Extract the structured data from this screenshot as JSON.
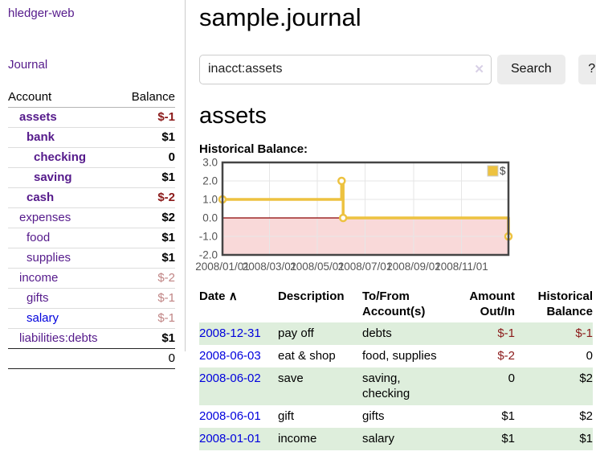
{
  "app": {
    "brand": "hledger-web"
  },
  "nav": {
    "journal": "Journal"
  },
  "sidebar": {
    "header": {
      "account": "Account",
      "balance": "Balance"
    },
    "accounts": [
      {
        "name": "assets",
        "level": 1,
        "balance": "$-1"
      },
      {
        "name": "bank",
        "level": 2,
        "balance": "$1"
      },
      {
        "name": "checking",
        "level": 3,
        "balance": "0"
      },
      {
        "name": "saving",
        "level": 3,
        "balance": "$1"
      },
      {
        "name": "cash",
        "level": 2,
        "balance": "$-2"
      },
      {
        "name": "expenses",
        "level": 1,
        "balance": "$2"
      },
      {
        "name": "food",
        "level": 2,
        "balance": "$1"
      },
      {
        "name": "supplies",
        "level": 2,
        "balance": "$1"
      },
      {
        "name": "income",
        "level": 1,
        "balance": "$-2"
      },
      {
        "name": "gifts",
        "level": 2,
        "balance": "$-1"
      },
      {
        "name": "salary",
        "level": 2,
        "balance": "$-1"
      },
      {
        "name": "liabilities:debts",
        "level": 1,
        "balance": "$1"
      }
    ],
    "total": "0"
  },
  "page": {
    "title": "sample.journal",
    "account_heading": "assets",
    "chart_title": "Historical Balance:"
  },
  "search": {
    "query": "inacct:assets",
    "clear_icon": "✕",
    "search_button": "Search",
    "help_button": "?"
  },
  "colors": {
    "link_purple": "#551a8b",
    "link_blue": "#0000dd",
    "negative_strong": "#8b1a1a",
    "negative_soft": "#c08484",
    "row_stripe_green": "#deeedc",
    "series_gold": "#edc240"
  },
  "chart_data": {
    "type": "line",
    "step": true,
    "title": "Historical Balance:",
    "legend": "$",
    "legend_position": "top-right",
    "grid": true,
    "xlim": [
      "2008-01-01",
      "2008-12-31"
    ],
    "ylim": [
      -2,
      3
    ],
    "x_ticks": [
      "2008/01/01",
      "2008/03/01",
      "2008/05/01",
      "2008/07/01",
      "2008/09/01",
      "2008/11/01"
    ],
    "y_ticks": [
      3.0,
      2.0,
      1.0,
      0.0,
      -1.0,
      -2.0
    ],
    "series": [
      {
        "name": "$",
        "color": "#edc240",
        "points": [
          [
            "2008-01-01",
            1
          ],
          [
            "2008-06-01",
            2
          ],
          [
            "2008-06-03",
            0
          ],
          [
            "2008-12-31",
            -1
          ]
        ]
      }
    ],
    "negative_region_color": "#f9d9d9",
    "zero_line_color": "#8b0000"
  },
  "register": {
    "headers": {
      "date": "Date",
      "description": "Description",
      "account": "To/From Account(s)",
      "amount": "Amount Out/In",
      "balance": "Historical Balance"
    },
    "sort_icon": "∧",
    "rows": [
      {
        "date": "2008-12-31",
        "description": "pay off",
        "accounts": "debts",
        "amount": "$-1",
        "balance": "$-1"
      },
      {
        "date": "2008-06-03",
        "description": "eat & shop",
        "accounts": "food, supplies",
        "amount": "$-2",
        "balance": "0"
      },
      {
        "date": "2008-06-02",
        "description": "save",
        "accounts": "saving, checking",
        "amount": "0",
        "balance": "$2"
      },
      {
        "date": "2008-06-01",
        "description": "gift",
        "accounts": "gifts",
        "amount": "$1",
        "balance": "$2"
      },
      {
        "date": "2008-01-01",
        "description": "income",
        "accounts": "salary",
        "amount": "$1",
        "balance": "$1"
      }
    ]
  }
}
